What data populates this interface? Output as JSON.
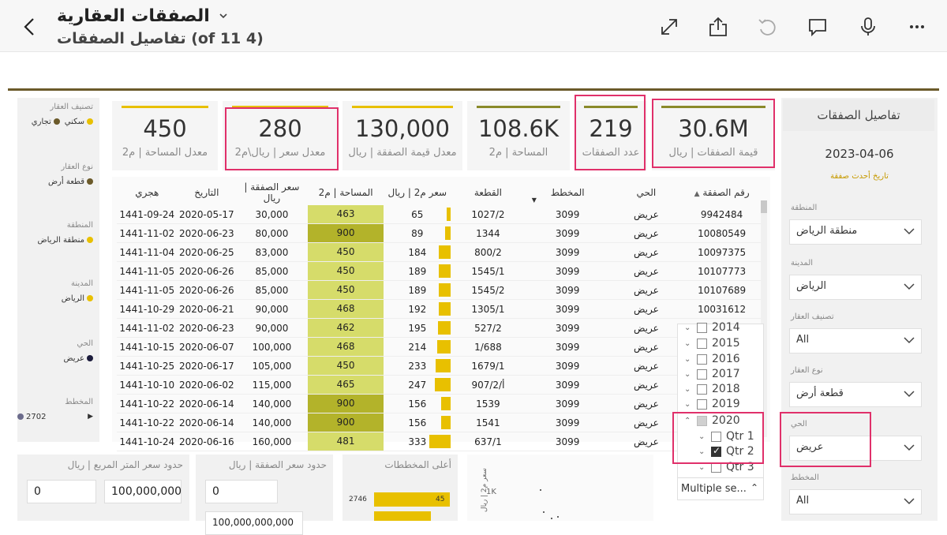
{
  "header": {
    "title": "الصفقات العقارية",
    "subtitle": "(4 of 11) تفاصيل الصفقات"
  },
  "legend": [
    {
      "title": "تصنيف العقار",
      "items": [
        {
          "label": "سكني",
          "color": "#e8c000"
        },
        {
          "label": "تجاري",
          "color": "#6b5a2a"
        }
      ]
    },
    {
      "title": "نوع العقار",
      "items": [
        {
          "label": "قطعة أرض",
          "color": "#6b5a2a"
        }
      ]
    },
    {
      "title": "المنطقة",
      "items": [
        {
          "label": "منطقة الرياض",
          "color": "#e8c000"
        }
      ]
    },
    {
      "title": "المدينة",
      "items": [
        {
          "label": "الرياض",
          "color": "#e8c000"
        }
      ]
    },
    {
      "title": "الحي",
      "items": [
        {
          "label": "عريض",
          "color": "#1c1c3c"
        }
      ]
    },
    {
      "title": "المخطط",
      "items": [
        {
          "label": "2702",
          "color": "#6b6b8b"
        }
      ]
    }
  ],
  "kpis": [
    {
      "value": "30.6M",
      "label": "قيمة الصفقات | ريال",
      "bar_color": "#8a8a2a"
    },
    {
      "value": "219",
      "label": "عدد الصفقات",
      "bar_color": "#8a8a2a"
    },
    {
      "value": "108.6K",
      "label": "المساحة | م2",
      "bar_color": "#8a8a2a"
    },
    {
      "value": "130,000",
      "label": "معدل قيمة الصفقة | ريال",
      "bar_color": "#e8c000"
    },
    {
      "value": "280",
      "label": "معدل سعر | ريال\\م2",
      "bar_color": "#e8c000"
    },
    {
      "value": "450",
      "label": "معدل المساحة | م2",
      "bar_color": "#e8c000"
    }
  ],
  "table": {
    "headers": [
      "رقم الصفقة",
      "الحي",
      "المخطط",
      "القطعة",
      "سعر م2 | ريال",
      "المساحة | م2",
      "سعر الصفقة | ريال",
      "التاريخ",
      "هجري"
    ],
    "rows": [
      {
        "id": "9942484",
        "district": "عريض",
        "plan": "3099",
        "plot": "1027/2",
        "ppm": "65",
        "area": "463",
        "price": "30,000",
        "date": "2020-05-17",
        "hijri": "1441-09-24"
      },
      {
        "id": "10080549",
        "district": "عريض",
        "plan": "3099",
        "plot": "1344",
        "ppm": "89",
        "area": "900",
        "price": "80,000",
        "date": "2020-06-23",
        "hijri": "1441-11-02"
      },
      {
        "id": "10097375",
        "district": "عريض",
        "plan": "3099",
        "plot": "800/2",
        "ppm": "184",
        "area": "450",
        "price": "83,000",
        "date": "2020-06-25",
        "hijri": "1441-11-04"
      },
      {
        "id": "10107773",
        "district": "عريض",
        "plan": "3099",
        "plot": "1545/1",
        "ppm": "189",
        "area": "450",
        "price": "85,000",
        "date": "2020-06-26",
        "hijri": "1441-11-05"
      },
      {
        "id": "10107689",
        "district": "عريض",
        "plan": "3099",
        "plot": "1545/2",
        "ppm": "189",
        "area": "450",
        "price": "85,000",
        "date": "2020-06-26",
        "hijri": "1441-11-05"
      },
      {
        "id": "10031612",
        "district": "عريض",
        "plan": "3099",
        "plot": "1305/1",
        "ppm": "192",
        "area": "468",
        "price": "90,000",
        "date": "2020-06-21",
        "hijri": "1441-10-29"
      },
      {
        "id": "",
        "district": "عريض",
        "plan": "3099",
        "plot": "527/2",
        "ppm": "195",
        "area": "462",
        "price": "90,000",
        "date": "2020-06-23",
        "hijri": "1441-11-02"
      },
      {
        "id": "",
        "district": "عريض",
        "plan": "3099",
        "plot": "1/688",
        "ppm": "214",
        "area": "468",
        "price": "100,000",
        "date": "2020-06-07",
        "hijri": "1441-10-15"
      },
      {
        "id": "",
        "district": "عريض",
        "plan": "3099",
        "plot": "1679/1",
        "ppm": "233",
        "area": "450",
        "price": "105,000",
        "date": "2020-06-17",
        "hijri": "1441-10-25"
      },
      {
        "id": "",
        "district": "عريض",
        "plan": "3099",
        "plot": "907/2/أ",
        "ppm": "247",
        "area": "465",
        "price": "115,000",
        "date": "2020-06-02",
        "hijri": "1441-10-10"
      },
      {
        "id": "",
        "district": "عريض",
        "plan": "3099",
        "plot": "1539",
        "ppm": "156",
        "area": "900",
        "price": "140,000",
        "date": "2020-06-14",
        "hijri": "1441-10-22"
      },
      {
        "id": "",
        "district": "عريض",
        "plan": "3099",
        "plot": "1541",
        "ppm": "156",
        "area": "900",
        "price": "140,000",
        "date": "2020-06-14",
        "hijri": "1441-10-22"
      },
      {
        "id": "",
        "district": "عريض",
        "plan": "3099",
        "plot": "637/1",
        "ppm": "333",
        "area": "481",
        "price": "160,000",
        "date": "2020-06-16",
        "hijri": "1441-10-24"
      }
    ]
  },
  "year_slicer": {
    "years": [
      {
        "label": "2014",
        "state": "none"
      },
      {
        "label": "2015",
        "state": "none"
      },
      {
        "label": "2016",
        "state": "none"
      },
      {
        "label": "2017",
        "state": "none"
      },
      {
        "label": "2018",
        "state": "none"
      },
      {
        "label": "2019",
        "state": "none"
      },
      {
        "label": "2020",
        "state": "partial"
      },
      {
        "label": "Qtr 1",
        "state": "none"
      },
      {
        "label": "Qtr 2",
        "state": "checked"
      },
      {
        "label": "Qtr 3",
        "state": "none"
      }
    ],
    "multiple_label": "Multiple se..."
  },
  "filters": {
    "panel_title": "تفاصيل الصفقات",
    "latest_date": "2023-04-06",
    "latest_date_label": "تاريخ أحدث صفقة",
    "dropdowns": [
      {
        "label": "المنطقة",
        "value": "منطقة الرياض"
      },
      {
        "label": "المدينة",
        "value": "الرياض"
      },
      {
        "label": "تصنيف العقار",
        "value": "All"
      },
      {
        "label": "نوع العقار",
        "value": "قطعة أرض"
      },
      {
        "label": "الحي",
        "value": "عريض"
      },
      {
        "label": "المخطط",
        "value": "All"
      }
    ]
  },
  "bottom": {
    "sqm_price_title": "حدود سعر المتر المربع | ريال",
    "sqm_min": "0",
    "sqm_max": "100,000,000",
    "deal_price_title": "حدود سعر الصفقة | ريال",
    "deal_min": "0",
    "deal_max": "100,000,000,000",
    "top_plans_title": "أعلى المخططات",
    "top_plan_name": "2746",
    "top_plan_value": "45",
    "scatter_axis_tick": "1K",
    "scatter_axis_label": "سعر م2 | ريال"
  }
}
